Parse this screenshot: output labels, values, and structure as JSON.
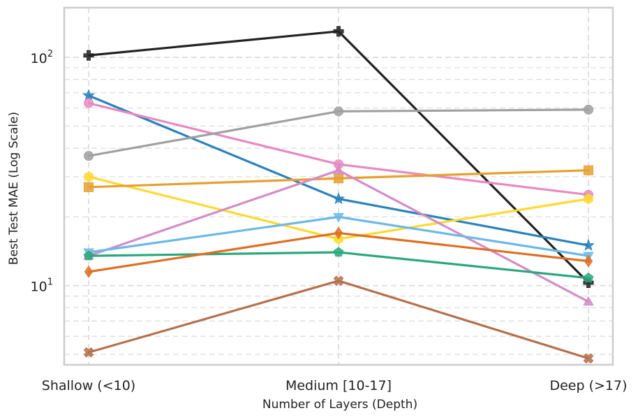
{
  "chart_data": {
    "type": "line",
    "title": "",
    "xlabel": "Number of Layers (Depth)",
    "ylabel": "Best Test MAE (Log Scale)",
    "yscale": "log",
    "ylim": [
      4.5,
      165
    ],
    "grid": true,
    "categories": [
      "Shallow (<10)",
      "Medium [10-17]",
      "Deep (>17)"
    ],
    "ytick_labels": [
      {
        "value": 10,
        "base": "10",
        "exp": "1"
      },
      {
        "value": 100,
        "base": "10",
        "exp": "2"
      }
    ],
    "series": [
      {
        "name": "series-black",
        "color": "#222222",
        "marker": "plus",
        "values": [
          102,
          130,
          10.3
        ]
      },
      {
        "name": "series-blue",
        "color": "#2a83bb",
        "marker": "star",
        "values": [
          68,
          24,
          15
        ]
      },
      {
        "name": "series-pink",
        "color": "#e78ac3",
        "marker": "circle",
        "values": [
          63,
          34,
          25
        ]
      },
      {
        "name": "series-gray",
        "color": "#a0a0a0",
        "marker": "circle",
        "values": [
          37,
          58,
          59
        ]
      },
      {
        "name": "series-gold",
        "color": "#ffd92f",
        "marker": "hexagon",
        "values": [
          30,
          16,
          24
        ]
      },
      {
        "name": "series-orange",
        "color": "#e6a030",
        "marker": "square",
        "values": [
          27,
          29.5,
          32
        ]
      },
      {
        "name": "series-orchid",
        "color": "#d48cc8",
        "marker": "triangle-up",
        "values": [
          13.5,
          32,
          8.5
        ]
      },
      {
        "name": "series-skyblue",
        "color": "#6cb8e6",
        "marker": "triangle-down",
        "values": [
          14,
          20,
          13.5
        ]
      },
      {
        "name": "series-green",
        "color": "#2aa87b",
        "marker": "pentagon",
        "values": [
          13.5,
          14,
          10.8
        ]
      },
      {
        "name": "series-darkorange",
        "color": "#dd6f24",
        "marker": "diamond",
        "values": [
          11.5,
          17,
          12.8
        ]
      },
      {
        "name": "series-brown",
        "color": "#b5704c",
        "marker": "x",
        "values": [
          5.1,
          10.5,
          4.8
        ]
      }
    ]
  }
}
